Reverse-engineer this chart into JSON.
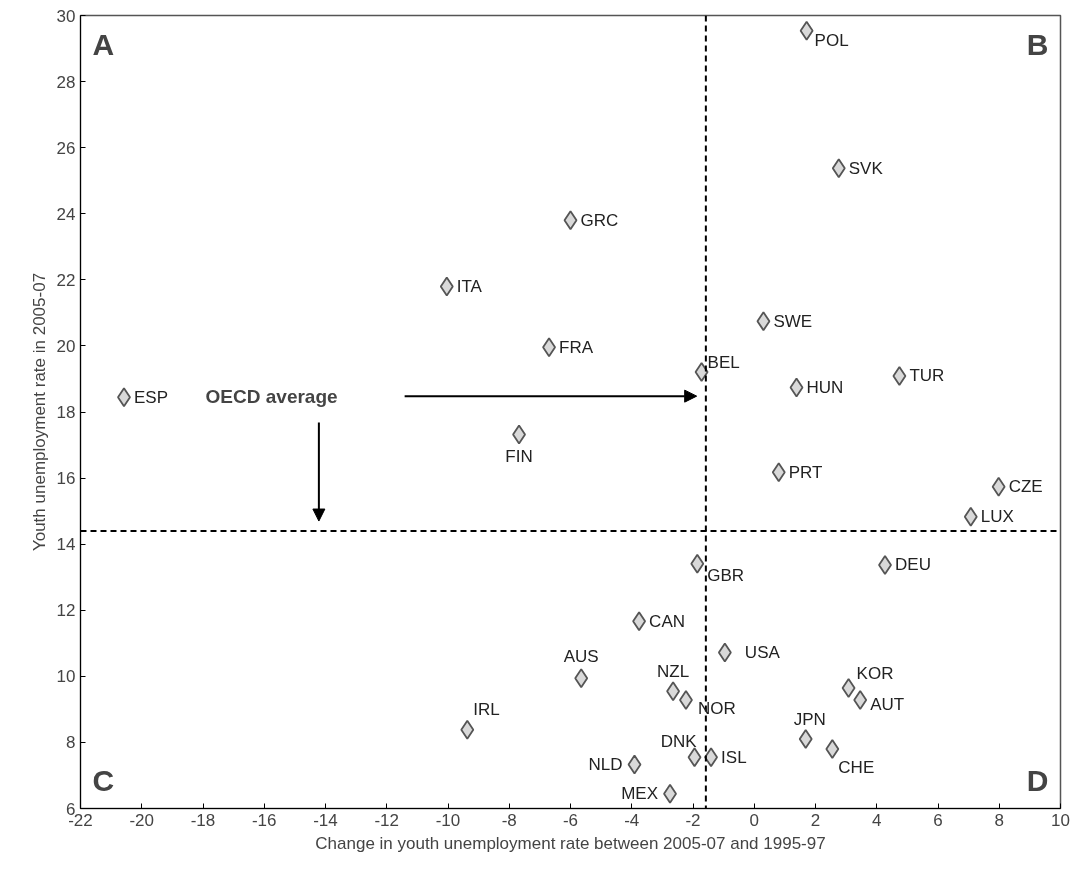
{
  "chart_data": {
    "type": "scatter",
    "xlabel": "Change in youth unemployment rate between 2005-07 and 1995-97",
    "ylabel": "Youth unemployment rate in 2005-07",
    "xlim": [
      -22,
      10
    ],
    "ylim": [
      6,
      30
    ],
    "xticks": [
      -22,
      -20,
      -18,
      -16,
      -14,
      -12,
      -10,
      -8,
      -6,
      -4,
      -2,
      0,
      2,
      4,
      6,
      8,
      10
    ],
    "yticks": [
      6,
      8,
      10,
      12,
      14,
      16,
      18,
      20,
      22,
      24,
      26,
      28,
      30
    ],
    "grid": false,
    "marker": "diamond",
    "series": [
      {
        "color": "#d9d9d9",
        "x": [
          1.71,
          2.76,
          -6.0,
          -10.04,
          0.3,
          -6.7,
          -1.72,
          4.74,
          1.38,
          -20.58,
          -7.68,
          0.8,
          7.98,
          7.07,
          -1.86,
          4.27,
          -3.76,
          -0.96,
          -5.65,
          -2.65,
          -2.23,
          -9.37,
          -3.91,
          -1.95,
          -1.41,
          -2.75,
          1.68,
          2.55,
          3.08,
          3.46
        ],
        "values": [
          29.54,
          25.38,
          23.8,
          21.8,
          20.75,
          19.96,
          19.21,
          19.09,
          18.74,
          18.45,
          17.32,
          16.18,
          15.74,
          14.83,
          13.41,
          13.37,
          11.67,
          10.72,
          9.94,
          9.55,
          9.28,
          8.38,
          7.33,
          7.55,
          7.55,
          6.45,
          8.1,
          7.8,
          9.65,
          9.28
        ],
        "value_labels": [
          "POL",
          "SVK",
          "GRC",
          "ITA",
          "SWE",
          "FRA",
          "BEL",
          "TUR",
          "HUN",
          "ESP",
          "FIN",
          "PRT",
          "CZE",
          "LUX",
          "GBR",
          "DEU",
          "CAN",
          "USA",
          "AUS",
          "NZL",
          "NOR",
          "IRL",
          "NLD",
          "DNK",
          "ISL",
          "MEX",
          "JPN",
          "CHE",
          "KOR",
          "AUT"
        ]
      }
    ],
    "ref_lines": [
      {
        "axis": "x",
        "value": -1.58,
        "line_style": "dashed",
        "color": "#000000"
      },
      {
        "axis": "y",
        "value": 14.4,
        "line_style": "dashed",
        "color": "#000000"
      }
    ],
    "annotations": [
      "A",
      "B",
      "C",
      "D",
      "OECD average"
    ]
  }
}
